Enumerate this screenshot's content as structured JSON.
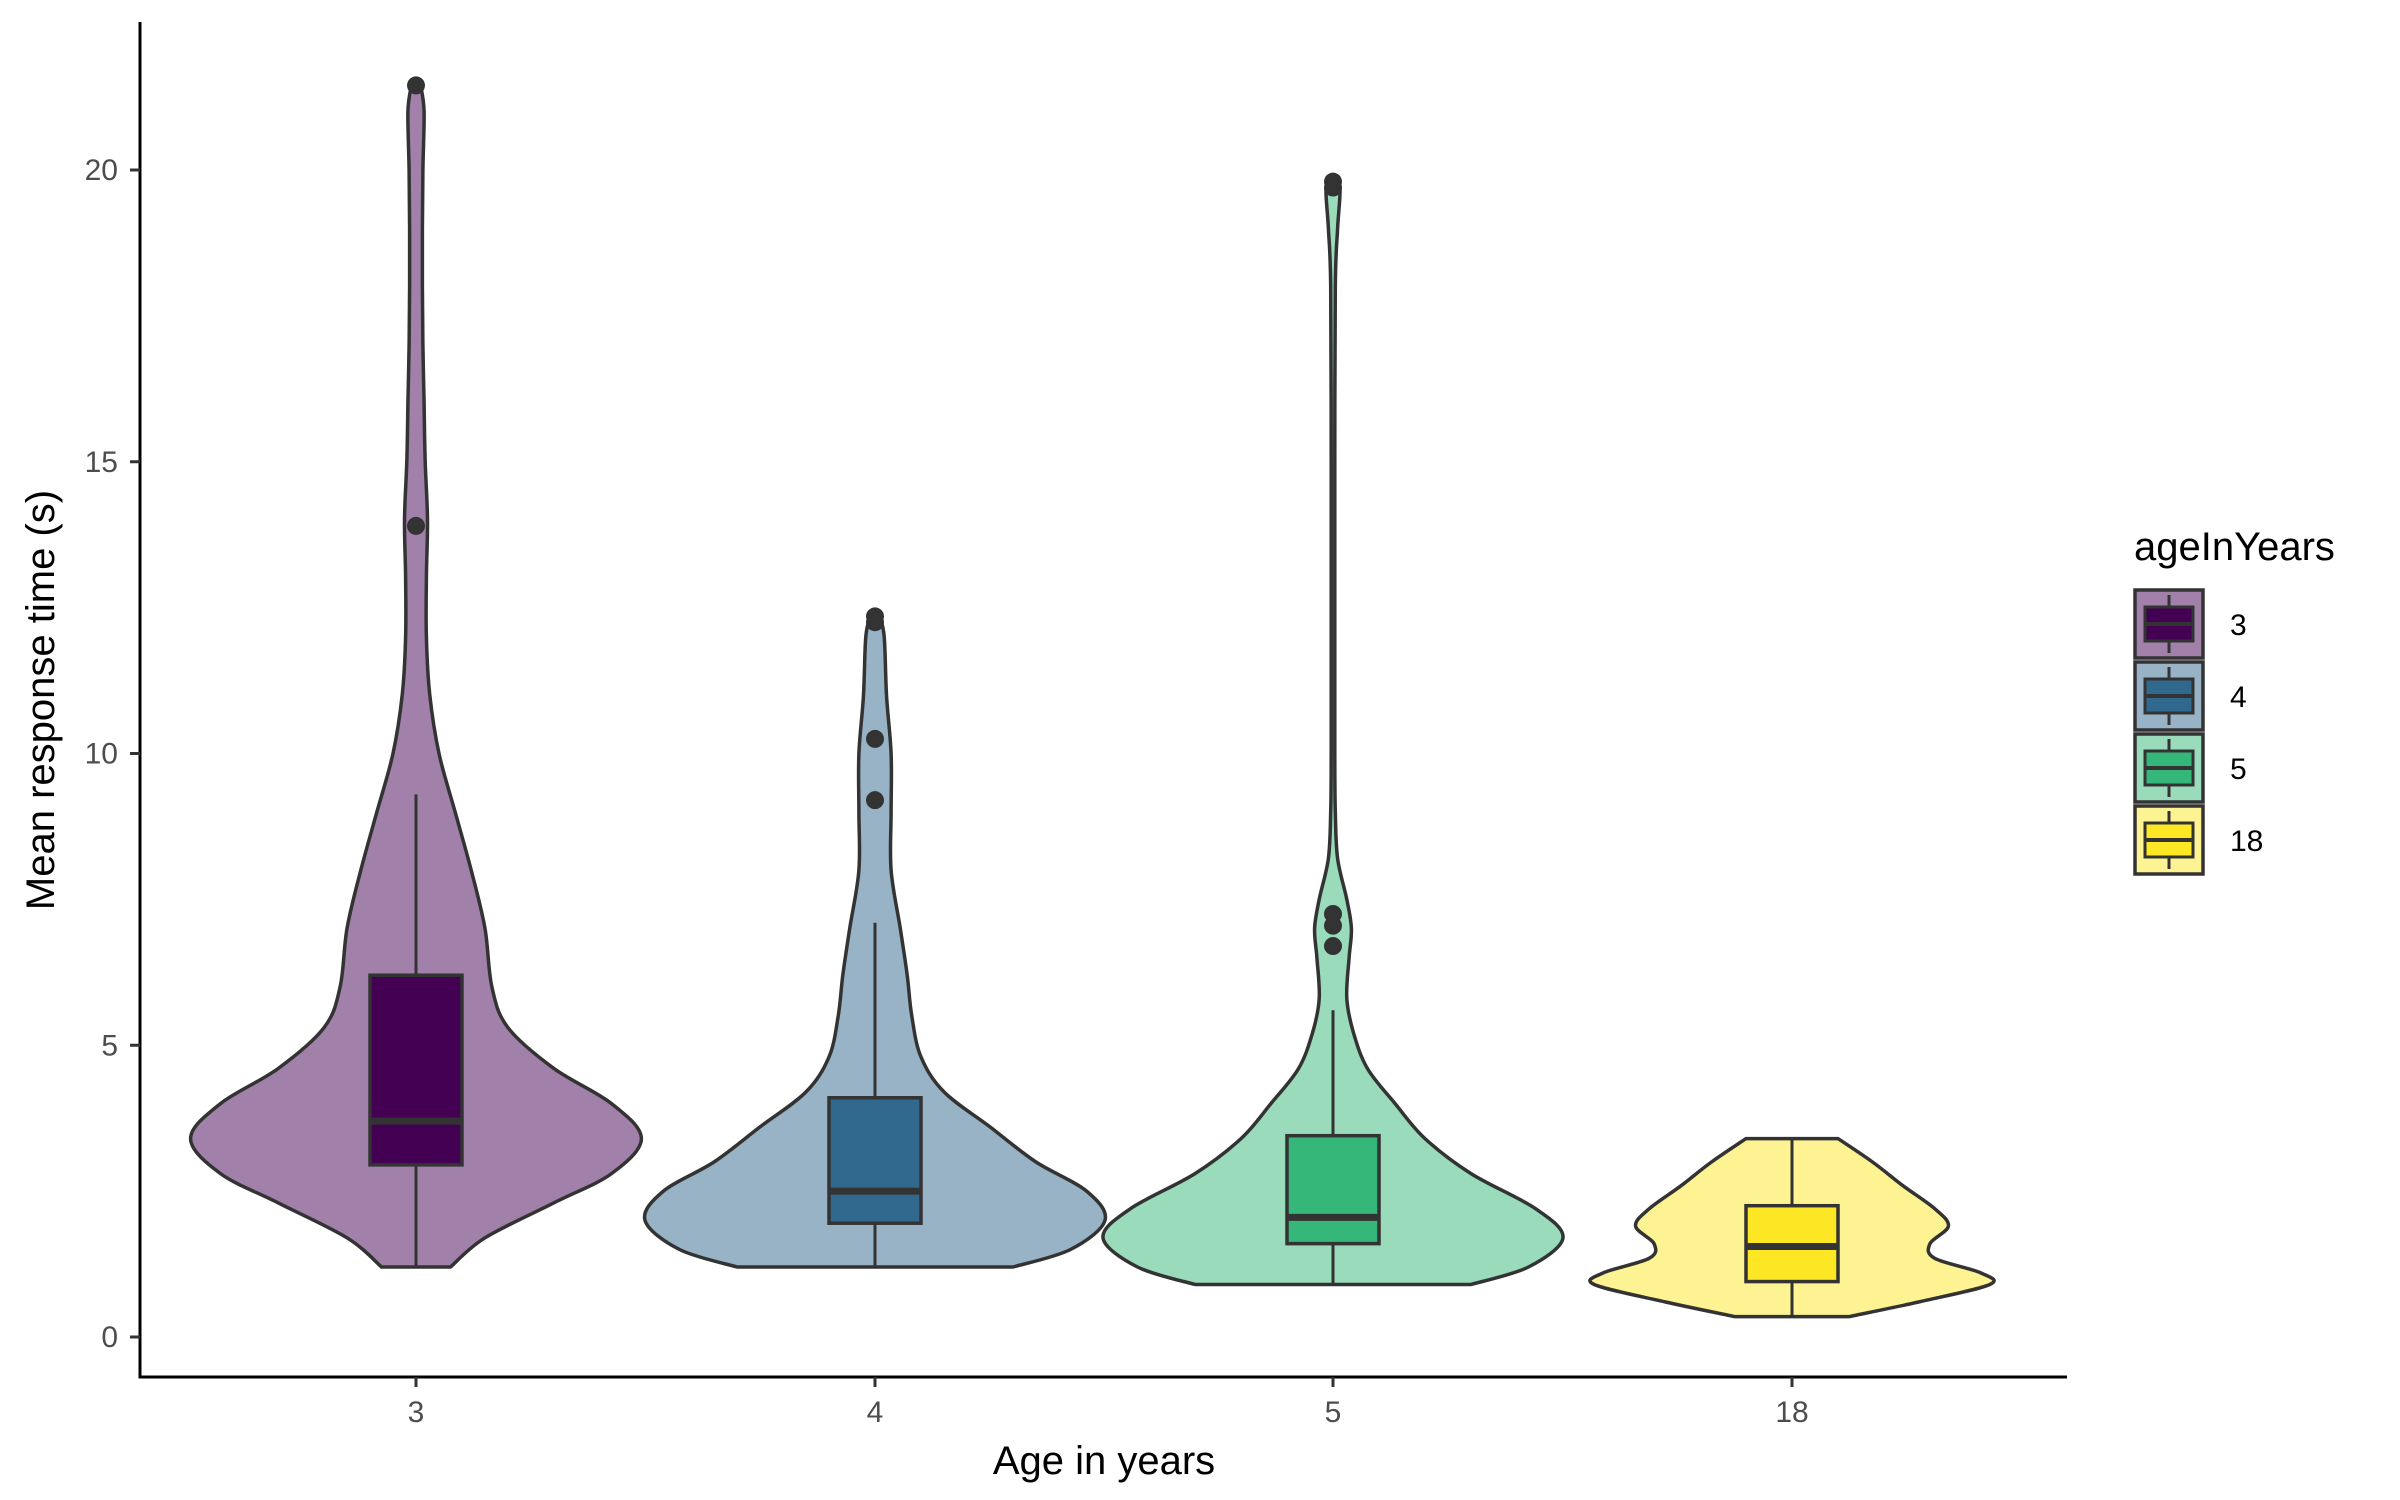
{
  "chart_data": {
    "type": "violin",
    "xlabel": "Age in years",
    "ylabel": "Mean response time (s)",
    "ylim": [
      -0.7,
      22.5
    ],
    "yticks": [
      0,
      5,
      10,
      15,
      20
    ],
    "grid": false,
    "legend": {
      "title": "ageInYears",
      "placement": "right",
      "entries": [
        {
          "label": "3",
          "box_color": "#440154",
          "violin_color": "#a180aa"
        },
        {
          "label": "4",
          "box_color": "#31688e",
          "violin_color": "#98b3c6"
        },
        {
          "label": "5",
          "box_color": "#35b779",
          "violin_color": "#9adbbc"
        },
        {
          "label": "18",
          "box_color": "#fde725",
          "violin_color": "#fef392"
        }
      ]
    },
    "categories": [
      "3",
      "4",
      "5",
      "18"
    ],
    "groups": [
      {
        "category": "3",
        "box": {
          "min": 1.2,
          "q1": 2.95,
          "median": 3.7,
          "q3": 6.2,
          "max": 9.3
        },
        "outliers": [
          13.9,
          21.45
        ],
        "density": [
          [
            1.2,
            0.15
          ],
          [
            1.7,
            0.3
          ],
          [
            2.3,
            0.6
          ],
          [
            2.8,
            0.85
          ],
          [
            3.4,
            0.98
          ],
          [
            4.0,
            0.85
          ],
          [
            4.6,
            0.6
          ],
          [
            5.3,
            0.4
          ],
          [
            6.0,
            0.33
          ],
          [
            7.0,
            0.3
          ],
          [
            8.0,
            0.24
          ],
          [
            9.0,
            0.17
          ],
          [
            10.0,
            0.1
          ],
          [
            11.0,
            0.06
          ],
          [
            12.0,
            0.045
          ],
          [
            13.0,
            0.045
          ],
          [
            14.0,
            0.05
          ],
          [
            15.0,
            0.04
          ],
          [
            16.0,
            0.035
          ],
          [
            17.0,
            0.03
          ],
          [
            18.0,
            0.028
          ],
          [
            19.0,
            0.028
          ],
          [
            20.0,
            0.03
          ],
          [
            21.0,
            0.035
          ],
          [
            21.45,
            0.02
          ]
        ]
      },
      {
        "category": "4",
        "box": {
          "min": 1.2,
          "q1": 1.95,
          "median": 2.5,
          "q3": 4.1,
          "max": 7.1
        },
        "outliers": [
          9.2,
          10.25,
          12.25,
          12.35
        ],
        "density": [
          [
            1.2,
            0.6
          ],
          [
            1.5,
            0.85
          ],
          [
            2.0,
            1.0
          ],
          [
            2.5,
            0.92
          ],
          [
            3.0,
            0.7
          ],
          [
            3.6,
            0.5
          ],
          [
            4.2,
            0.3
          ],
          [
            4.8,
            0.2
          ],
          [
            5.5,
            0.16
          ],
          [
            6.2,
            0.14
          ],
          [
            7.0,
            0.11
          ],
          [
            8.0,
            0.07
          ],
          [
            9.0,
            0.07
          ],
          [
            10.0,
            0.07
          ],
          [
            11.0,
            0.05
          ],
          [
            12.0,
            0.04
          ],
          [
            12.35,
            0.02
          ]
        ]
      },
      {
        "category": "5",
        "box": {
          "min": 0.9,
          "q1": 1.6,
          "median": 2.05,
          "q3": 3.45,
          "max": 5.6
        },
        "outliers": [
          6.7,
          7.05,
          7.25,
          19.7,
          19.8
        ],
        "density": [
          [
            0.9,
            0.6
          ],
          [
            1.2,
            0.85
          ],
          [
            1.7,
            1.0
          ],
          [
            2.2,
            0.88
          ],
          [
            2.8,
            0.6
          ],
          [
            3.4,
            0.4
          ],
          [
            4.0,
            0.27
          ],
          [
            4.6,
            0.15
          ],
          [
            5.2,
            0.09
          ],
          [
            5.8,
            0.06
          ],
          [
            6.5,
            0.07
          ],
          [
            7.0,
            0.08
          ],
          [
            7.5,
            0.06
          ],
          [
            8.2,
            0.02
          ],
          [
            9.0,
            0.01
          ],
          [
            10.0,
            0.008
          ],
          [
            12.0,
            0.008
          ],
          [
            15.0,
            0.008
          ],
          [
            18.0,
            0.01
          ],
          [
            19.0,
            0.02
          ],
          [
            19.7,
            0.03
          ],
          [
            19.85,
            0.0
          ]
        ]
      },
      {
        "category": "18",
        "box": {
          "min": 0.35,
          "q1": 0.95,
          "median": 1.55,
          "q3": 2.25,
          "max": 3.4
        },
        "outliers": [],
        "density": [
          [
            0.35,
            0.25
          ],
          [
            0.6,
            0.55
          ],
          [
            0.9,
            0.86
          ],
          [
            1.1,
            0.82
          ],
          [
            1.35,
            0.62
          ],
          [
            1.6,
            0.6
          ],
          [
            1.9,
            0.68
          ],
          [
            2.2,
            0.62
          ],
          [
            2.6,
            0.48
          ],
          [
            3.0,
            0.35
          ],
          [
            3.4,
            0.2
          ]
        ]
      }
    ]
  }
}
